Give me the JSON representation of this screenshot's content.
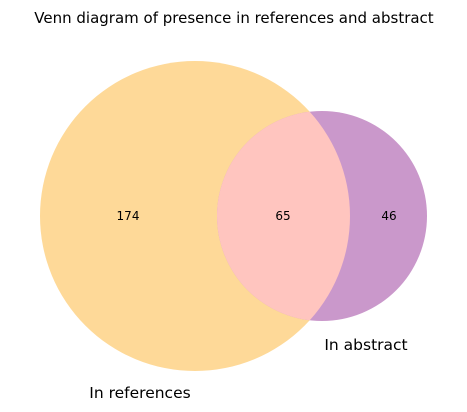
{
  "title": "Venn diagram of presence in references and abstract",
  "sets": [
    {
      "name": "In references",
      "only_count": "174"
    },
    {
      "name": "In abstract",
      "only_count": "46"
    }
  ],
  "intersection": {
    "count": "65"
  },
  "colors": {
    "set_a": "#fed998",
    "set_b": "#ca98cb",
    "overlap": "#ffc5bf"
  }
}
